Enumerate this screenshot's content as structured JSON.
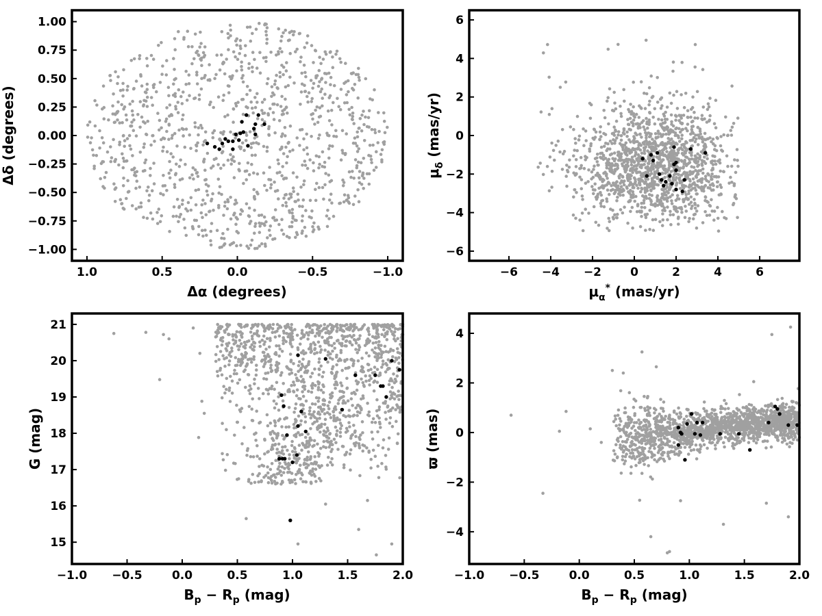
{
  "colors": {
    "field": "#a0a0a0",
    "members": "#000000"
  },
  "chart_data": [
    {
      "type": "scatter",
      "id": "position",
      "xlabel": "Δα (degrees)",
      "ylabel": "Δδ (degrees)",
      "xlim": [
        1.1,
        -1.1
      ],
      "ylim": [
        -1.1,
        1.1
      ],
      "x_inverted": true,
      "xticks": [
        1.0,
        0.5,
        0.0,
        -0.5,
        -1.0
      ],
      "xtick_labels": [
        "1.0",
        "0.5",
        "0.0",
        "−0.5",
        "−1.0"
      ],
      "yticks": [
        -1.0,
        -0.75,
        -0.5,
        -0.25,
        0.0,
        0.25,
        0.5,
        0.75,
        1.0
      ],
      "ytick_labels": [
        "−1.00",
        "−0.75",
        "−0.50",
        "−0.25",
        "0.00",
        "0.25",
        "0.50",
        "0.75",
        "1.00"
      ],
      "grid": false,
      "series": [
        {
          "role": "field",
          "color": "#a0a0a0",
          "count": 1100,
          "distribution": {
            "shape": "disk",
            "cx": 0.0,
            "cy": 0.0,
            "r": 1.0,
            "seed": 11
          }
        },
        {
          "role": "members",
          "color": "#000000",
          "points": [
            [
              0.2,
              -0.07
            ],
            [
              0.15,
              -0.1
            ],
            [
              0.12,
              -0.12
            ],
            [
              0.1,
              -0.07
            ],
            [
              0.08,
              -0.03
            ],
            [
              0.06,
              -0.05
            ],
            [
              0.03,
              -0.12
            ],
            [
              0.03,
              -0.05
            ],
            [
              0.01,
              0.01
            ],
            [
              -0.01,
              -0.04
            ],
            [
              -0.02,
              0.02
            ],
            [
              -0.03,
              0.12
            ],
            [
              -0.04,
              0.03
            ],
            [
              -0.06,
              0.18
            ],
            [
              -0.07,
              -0.09
            ],
            [
              -0.11,
              0.06
            ],
            [
              -0.12,
              0.01
            ],
            [
              -0.14,
              0.18
            ],
            [
              -0.18,
              0.1
            ],
            [
              -0.12,
              0.1
            ]
          ]
        }
      ]
    },
    {
      "type": "scatter",
      "id": "proper-motion",
      "xlabel": "μα* (mas/yr)",
      "ylabel": "μδ (mas/yr)",
      "xlim": [
        -7.9,
        7.9
      ],
      "ylim": [
        -6.5,
        6.5
      ],
      "xticks": [
        -6,
        -4,
        -2,
        0,
        2,
        4,
        6
      ],
      "xtick_labels": [
        "−6",
        "−4",
        "−2",
        "0",
        "2",
        "4",
        "6"
      ],
      "yticks": [
        -6,
        -4,
        -2,
        0,
        2,
        4,
        6
      ],
      "ytick_labels": [
        "−6",
        "−4",
        "−2",
        "0",
        "2",
        "4",
        "6"
      ],
      "grid": false,
      "series": [
        {
          "role": "field",
          "color": "#a0a0a0",
          "count": 1400,
          "distribution": {
            "shape": "gaussian-box",
            "cx": 1.0,
            "cy": -1.5,
            "sx": 1.8,
            "sy": 1.5,
            "xmin": -5.0,
            "xmax": 5.0,
            "ymin": -5.0,
            "ymax": 5.0,
            "seed": 22
          }
        },
        {
          "role": "members",
          "color": "#000000",
          "points": [
            [
              0.4,
              -1.2
            ],
            [
              0.6,
              -2.1
            ],
            [
              0.8,
              -1.0
            ],
            [
              0.9,
              -1.3
            ],
            [
              1.1,
              -0.9
            ],
            [
              1.2,
              -2.0
            ],
            [
              1.3,
              -2.3
            ],
            [
              1.4,
              -2.6
            ],
            [
              1.5,
              -2.4
            ],
            [
              1.7,
              -2.1
            ],
            [
              1.8,
              -2.5
            ],
            [
              1.9,
              -0.6
            ],
            [
              1.9,
              -1.5
            ],
            [
              2.0,
              -1.4
            ],
            [
              2.0,
              -1.8
            ],
            [
              2.0,
              -2.8
            ],
            [
              2.4,
              -2.3
            ],
            [
              2.3,
              -2.9
            ],
            [
              2.7,
              -0.7
            ],
            [
              3.4,
              -0.9
            ]
          ]
        }
      ]
    },
    {
      "type": "scatter",
      "id": "cmd-g",
      "xlabel": "Bp − Rp (mag)",
      "ylabel": "G (mag)",
      "xlim": [
        -1.0,
        2.0
      ],
      "ylim": [
        14.4,
        21.3
      ],
      "xticks": [
        -1.0,
        -0.5,
        0.0,
        0.5,
        1.0,
        1.5,
        2.0
      ],
      "xtick_labels": [
        "−1.0",
        "−0.5",
        "0.0",
        "0.5",
        "1.0",
        "1.5",
        "2.0"
      ],
      "yticks": [
        15,
        16,
        17,
        18,
        19,
        20,
        21
      ],
      "ytick_labels": [
        "15",
        "16",
        "17",
        "18",
        "19",
        "20",
        "21"
      ],
      "grid": false,
      "series": [
        {
          "role": "field",
          "color": "#a0a0a0",
          "count": 1350,
          "distribution": {
            "shape": "cmd",
            "seed": 33
          }
        },
        {
          "role": "members",
          "color": "#000000",
          "points": [
            [
              0.88,
              17.3
            ],
            [
              0.9,
              19.05
            ],
            [
              0.91,
              17.3
            ],
            [
              0.92,
              18.75
            ],
            [
              0.93,
              17.3
            ],
            [
              0.95,
              17.95
            ],
            [
              0.98,
              15.6
            ],
            [
              1.0,
              17.2
            ],
            [
              1.04,
              17.4
            ],
            [
              1.05,
              20.15
            ],
            [
              1.05,
              18.2
            ],
            [
              1.08,
              18.6
            ],
            [
              1.12,
              18.05
            ],
            [
              1.3,
              20.05
            ],
            [
              1.45,
              18.65
            ],
            [
              1.57,
              19.6
            ],
            [
              1.75,
              19.6
            ],
            [
              1.8,
              19.3
            ],
            [
              1.82,
              19.3
            ],
            [
              1.85,
              19.0
            ],
            [
              1.9,
              20.0
            ],
            [
              1.97,
              19.75
            ]
          ]
        }
      ]
    },
    {
      "type": "scatter",
      "id": "cmd-parallax",
      "xlabel": "Bp − Rp (mag)",
      "ylabel": "ϖ (mas)",
      "xlim": [
        -1.0,
        2.0
      ],
      "ylim": [
        -5.3,
        4.8
      ],
      "xticks": [
        -1.0,
        -0.5,
        0.0,
        0.5,
        1.0,
        1.5,
        2.0
      ],
      "xtick_labels": [
        "−1.0",
        "−0.5",
        "0.0",
        "0.5",
        "1.0",
        "1.5",
        "2.0"
      ],
      "yticks": [
        -4,
        -2,
        0,
        2,
        4
      ],
      "ytick_labels": [
        "−4",
        "−2",
        "0",
        "2",
        "4"
      ],
      "grid": false,
      "series": [
        {
          "role": "field",
          "color": "#a0a0a0",
          "count": 1600,
          "distribution": {
            "shape": "parallax",
            "seed": 44
          }
        },
        {
          "role": "members",
          "color": "#000000",
          "points": [
            [
              0.9,
              0.2
            ],
            [
              0.9,
              -0.5
            ],
            [
              0.92,
              0.0
            ],
            [
              0.93,
              -0.05
            ],
            [
              0.96,
              -1.1
            ],
            [
              0.98,
              0.35
            ],
            [
              1.02,
              0.75
            ],
            [
              1.05,
              -0.05
            ],
            [
              1.07,
              0.4
            ],
            [
              1.1,
              -0.1
            ],
            [
              1.12,
              0.4
            ],
            [
              1.28,
              -0.05
            ],
            [
              1.45,
              -0.05
            ],
            [
              1.55,
              -0.7
            ],
            [
              1.72,
              0.4
            ],
            [
              1.78,
              1.05
            ],
            [
              1.8,
              0.95
            ],
            [
              1.82,
              0.75
            ],
            [
              1.9,
              0.3
            ],
            [
              1.98,
              0.3
            ]
          ]
        }
      ]
    }
  ]
}
